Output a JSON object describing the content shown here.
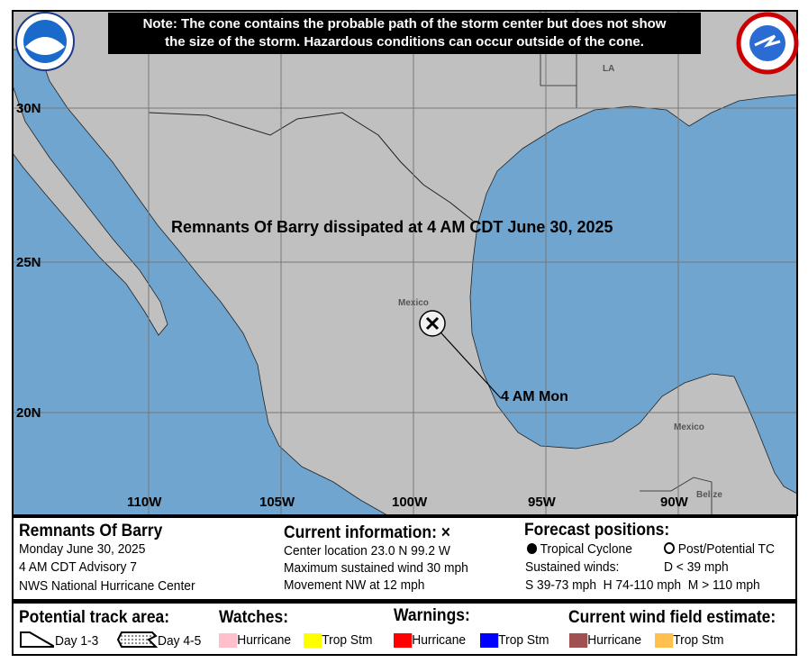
{
  "note": {
    "line1": "Note: The cone contains the probable path of the storm center but does not show",
    "line2": "the size of the storm. Hazardous conditions can occur outside of the cone."
  },
  "logos": {
    "noaa": "NOAA",
    "nws": "NATIONAL WEATHER SERVICE"
  },
  "map": {
    "colors": {
      "water": "#6fa5cf",
      "land": "#c0c0c0",
      "grid": "#777777"
    },
    "lat_labels": [
      "30N",
      "25N",
      "20N"
    ],
    "lon_labels": [
      "110W",
      "105W",
      "100W",
      "95W",
      "90W"
    ],
    "places": {
      "la": "LA",
      "mexico1": "Mexico",
      "mexico2": "Mexico",
      "belize": "Belize"
    },
    "dissipation": "Remnants Of Barry dissipated at 4 AM CDT June 30, 2025",
    "position_label": "4 AM Mon",
    "storm_center": {
      "lat": 23.0,
      "lon": -99.2
    }
  },
  "info": {
    "storm_name": "Remnants Of Barry",
    "date": "Monday June 30, 2025",
    "advisory": "4 AM CDT Advisory 7",
    "agency": "NWS National Hurricane Center",
    "current_title": "Current information: ×",
    "center": "Center location 23.0 N 99.2 W",
    "wind": "Maximum sustained wind 30 mph",
    "movement": "Movement NW at 12 mph",
    "forecast_title": "Forecast positions:",
    "tc": "Tropical Cyclone",
    "ptc": "Post/Potential TC",
    "sustained": "Sustained winds:",
    "d": "D < 39 mph",
    "shm": "S 39-73 mph  H 74-110 mph  M > 110 mph"
  },
  "legend": {
    "track_title": "Potential track area:",
    "day13": "Day 1-3",
    "day45": "Day 4-5",
    "watches_title": "Watches:",
    "warnings_title": "Warnings:",
    "wind_title": "Current wind field estimate:",
    "hurricane": "Hurricane",
    "tropstm": "Trop Stm",
    "colors": {
      "watch_hurricane": "#ffc0cb",
      "watch_ts": "#ffff00",
      "warn_hurricane": "#ff0000",
      "warn_ts": "#0000ff",
      "wind_hurricane": "#a05050",
      "wind_ts": "#ffc050"
    }
  }
}
